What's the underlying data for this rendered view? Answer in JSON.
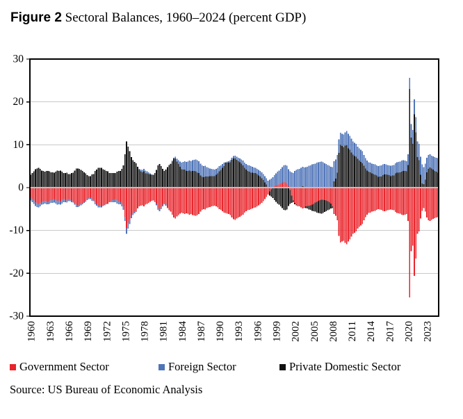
{
  "figure": {
    "label": "Figure 2",
    "title": "Sectoral Balances, 1960–2024 (percent GDP)",
    "source": "Source: US Bureau of Economic Analysis"
  },
  "legend": [
    {
      "label": "Government Sector",
      "color": "#e9242b"
    },
    {
      "label": "Foreign Sector",
      "color": "#4f74b8"
    },
    {
      "label": "Private Domestic Sector",
      "color": "#111111"
    }
  ],
  "chart_data": {
    "type": "bar",
    "stacked": true,
    "title": "Sectoral Balances, 1960–2024 (percent GDP)",
    "xlabel": "",
    "ylabel": "",
    "frequency": "quarterly",
    "x_start_year": 1960,
    "x_end_year": 2024,
    "x_tick_years": [
      1960,
      1963,
      1966,
      1969,
      1972,
      1975,
      1978,
      1981,
      1984,
      1987,
      1990,
      1993,
      1996,
      1999,
      2002,
      2005,
      2008,
      2011,
      2014,
      2017,
      2020,
      2023
    ],
    "ylim": [
      -30,
      30
    ],
    "y_ticks": [
      -30,
      -20,
      -10,
      0,
      10,
      20,
      30
    ],
    "grid": true,
    "legend_position": "bottom",
    "colors": {
      "grid": "#c9c9c9",
      "zero_line": "#bfbfbf",
      "frame": "#000000"
    },
    "series": [
      {
        "name": "Government Sector",
        "color": "#e9242b",
        "values": [
          -2.4,
          -2.7,
          -3.0,
          -3.4,
          -3.6,
          -3.8,
          -3.6,
          -3.3,
          -3.2,
          -3.1,
          -3.2,
          -3.3,
          -3.1,
          -2.9,
          -2.8,
          -2.7,
          -2.9,
          -3.1,
          -3.0,
          -3.2,
          -2.9,
          -2.7,
          -2.8,
          -3.0,
          -2.7,
          -2.8,
          -3.0,
          -3.2,
          -3.6,
          -4.0,
          -4.1,
          -4.0,
          -3.8,
          -3.6,
          -3.3,
          -3.0,
          -2.6,
          -2.4,
          -2.3,
          -2.6,
          -2.8,
          -3.4,
          -3.8,
          -4.2,
          -4.3,
          -4.4,
          -4.2,
          -4.0,
          -3.8,
          -3.7,
          -3.4,
          -3.2,
          -2.9,
          -2.8,
          -2.7,
          -2.9,
          -3.2,
          -3.4,
          -3.8,
          -4.4,
          -6.8,
          -9.5,
          -8.2,
          -7.4,
          -6.4,
          -5.9,
          -5.6,
          -5.4,
          -4.8,
          -4.4,
          -4.2,
          -4.1,
          -4.4,
          -4.0,
          -3.8,
          -3.6,
          -3.3,
          -3.1,
          -3.0,
          -3.2,
          -3.8,
          -4.8,
          -5.0,
          -4.6,
          -4.0,
          -3.6,
          -3.9,
          -4.6,
          -5.2,
          -5.6,
          -6.3,
          -7.0,
          -7.2,
          -6.7,
          -6.4,
          -6.1,
          -5.8,
          -6.0,
          -6.2,
          -6.0,
          -6.1,
          -6.3,
          -6.2,
          -6.4,
          -6.5,
          -6.6,
          -6.4,
          -6.2,
          -5.6,
          -5.2,
          -5.0,
          -5.1,
          -4.8,
          -4.6,
          -4.5,
          -4.4,
          -4.3,
          -4.2,
          -4.4,
          -4.6,
          -5.0,
          -5.2,
          -5.5,
          -5.8,
          -5.9,
          -6.1,
          -6.2,
          -6.4,
          -7.0,
          -7.4,
          -7.5,
          -7.2,
          -7.0,
          -6.8,
          -6.6,
          -6.3,
          -5.8,
          -5.5,
          -5.3,
          -5.2,
          -5.0,
          -4.9,
          -4.7,
          -4.6,
          -4.4,
          -4.1,
          -3.9,
          -3.6,
          -3.2,
          -2.7,
          -2.2,
          -1.6,
          -0.9,
          -0.4,
          0.0,
          0.3,
          0.4,
          0.6,
          0.7,
          0.9,
          1.1,
          1.3,
          1.2,
          0.9,
          0.3,
          -0.6,
          -1.9,
          -2.9,
          -3.6,
          -4.0,
          -4.2,
          -4.4,
          -4.6,
          -4.9,
          -4.6,
          -4.4,
          -4.3,
          -4.2,
          -4.1,
          -4.0,
          -3.8,
          -3.5,
          -3.3,
          -3.1,
          -2.9,
          -2.8,
          -2.8,
          -2.9,
          -3.0,
          -3.2,
          -3.4,
          -3.7,
          -4.4,
          -6.2,
          -6.6,
          -7.6,
          -11.3,
          -12.8,
          -12.6,
          -12.4,
          -12.9,
          -13.2,
          -12.6,
          -12.1,
          -11.4,
          -10.8,
          -10.5,
          -10.2,
          -9.6,
          -9.2,
          -8.8,
          -8.5,
          -7.6,
          -6.9,
          -6.3,
          -5.9,
          -5.8,
          -5.6,
          -5.5,
          -5.4,
          -5.2,
          -5.0,
          -5.1,
          -5.2,
          -5.4,
          -5.5,
          -5.4,
          -5.3,
          -5.2,
          -5.1,
          -5.2,
          -5.3,
          -5.7,
          -5.9,
          -6.0,
          -6.1,
          -6.3,
          -6.4,
          -6.3,
          -6.2,
          -7.8,
          -25.6,
          -14.8,
          -13.5,
          -20.6,
          -16.5,
          -10.8,
          -10.2,
          -7.2,
          -5.4,
          -4.8,
          -5.6,
          -7.0,
          -7.6,
          -7.8,
          -7.5,
          -7.3,
          -7.1,
          -7.0,
          -6.9
        ]
      },
      {
        "name": "Private Domestic Sector",
        "color": "#111111",
        "values": [
          3.0,
          3.4,
          3.8,
          4.3,
          4.5,
          4.6,
          4.4,
          4.0,
          3.9,
          3.7,
          3.9,
          3.9,
          3.8,
          3.6,
          3.6,
          3.5,
          3.7,
          4.0,
          3.9,
          4.0,
          3.7,
          3.4,
          3.4,
          3.5,
          3.2,
          3.2,
          3.4,
          3.5,
          4.0,
          4.5,
          4.5,
          4.4,
          4.1,
          3.9,
          3.6,
          3.3,
          2.9,
          2.7,
          2.7,
          3.1,
          3.2,
          3.9,
          4.2,
          4.6,
          4.6,
          4.6,
          4.3,
          4.1,
          3.9,
          3.8,
          3.4,
          3.4,
          3.4,
          3.4,
          3.4,
          3.7,
          3.9,
          3.9,
          4.4,
          5.2,
          7.8,
          10.8,
          9.6,
          8.5,
          7.1,
          6.4,
          6.0,
          5.7,
          4.9,
          4.2,
          3.8,
          3.6,
          3.8,
          3.3,
          3.3,
          3.2,
          3.1,
          3.0,
          3.0,
          3.4,
          4.1,
          5.2,
          5.5,
          5.0,
          4.4,
          3.9,
          4.2,
          4.8,
          5.3,
          5.5,
          6.1,
          6.7,
          6.8,
          6.1,
          5.5,
          4.9,
          4.3,
          4.2,
          4.2,
          3.9,
          3.9,
          4.0,
          3.8,
          3.9,
          3.9,
          3.8,
          3.5,
          3.4,
          2.8,
          2.5,
          2.4,
          2.6,
          2.6,
          2.6,
          2.7,
          2.7,
          2.7,
          2.7,
          3.0,
          3.3,
          3.8,
          4.1,
          4.6,
          5.0,
          5.8,
          5.8,
          5.8,
          5.9,
          6.5,
          6.8,
          6.8,
          6.5,
          6.2,
          5.9,
          5.6,
          5.2,
          4.6,
          4.2,
          3.9,
          3.7,
          3.5,
          3.5,
          3.4,
          3.4,
          3.2,
          2.8,
          2.6,
          2.2,
          1.8,
          1.2,
          0.7,
          0.0,
          -1.0,
          -1.7,
          -2.4,
          -2.9,
          -3.3,
          -3.7,
          -4.0,
          -4.4,
          -4.8,
          -5.2,
          -5.3,
          -5.1,
          -4.3,
          -3.2,
          -1.7,
          -0.5,
          -0.3,
          -0.1,
          -0.1,
          0.0,
          0.1,
          0.3,
          -0.1,
          -0.4,
          -0.6,
          -0.9,
          -1.1,
          -1.4,
          -1.7,
          -2.1,
          -2.5,
          -2.8,
          -3.1,
          -3.3,
          -3.1,
          -2.8,
          -2.5,
          -2.1,
          -1.7,
          -1.2,
          -0.4,
          1.5,
          2.1,
          3.5,
          8.1,
          10.0,
          9.7,
          9.4,
          9.8,
          9.9,
          9.2,
          8.8,
          8.2,
          7.7,
          7.4,
          7.2,
          6.7,
          6.3,
          6.0,
          5.7,
          5.1,
          4.5,
          4.0,
          3.7,
          3.6,
          3.3,
          3.2,
          3.0,
          2.8,
          2.5,
          2.6,
          2.6,
          2.9,
          3.1,
          3.1,
          3.0,
          2.9,
          2.7,
          2.8,
          2.8,
          3.3,
          3.5,
          3.5,
          3.6,
          3.7,
          3.9,
          3.9,
          3.8,
          5.3,
          23.0,
          11.7,
          10.2,
          17.1,
          12.9,
          7.1,
          6.4,
          3.0,
          1.0,
          0.8,
          1.9,
          3.6,
          4.4,
          4.7,
          4.5,
          4.2,
          3.9,
          3.7,
          3.5
        ]
      },
      {
        "name": "Foreign Sector",
        "color": "#4f74b8",
        "values": [
          -0.6,
          -0.7,
          -0.8,
          -0.9,
          -0.9,
          -0.8,
          -0.8,
          -0.7,
          -0.7,
          -0.6,
          -0.7,
          -0.6,
          -0.7,
          -0.7,
          -0.8,
          -0.8,
          -0.8,
          -0.9,
          -0.9,
          -0.8,
          -0.8,
          -0.7,
          -0.6,
          -0.5,
          -0.5,
          -0.4,
          -0.4,
          -0.3,
          -0.4,
          -0.5,
          -0.4,
          -0.4,
          -0.3,
          -0.3,
          -0.3,
          -0.3,
          -0.3,
          -0.3,
          -0.4,
          -0.5,
          -0.4,
          -0.5,
          -0.4,
          -0.4,
          -0.3,
          -0.2,
          -0.1,
          -0.1,
          -0.1,
          -0.1,
          0.0,
          -0.2,
          -0.5,
          -0.6,
          -0.7,
          -0.8,
          -0.7,
          -0.5,
          -0.6,
          -0.8,
          -1.0,
          -1.3,
          -1.4,
          -1.1,
          -0.7,
          -0.5,
          -0.4,
          -0.3,
          -0.1,
          0.2,
          0.4,
          0.5,
          0.6,
          0.7,
          0.5,
          0.4,
          0.2,
          0.1,
          0.0,
          -0.2,
          -0.3,
          -0.4,
          -0.5,
          -0.4,
          -0.4,
          -0.3,
          -0.3,
          -0.2,
          -0.1,
          0.1,
          0.2,
          0.3,
          0.4,
          0.6,
          0.9,
          1.2,
          1.5,
          1.8,
          2.0,
          2.1,
          2.2,
          2.3,
          2.4,
          2.5,
          2.6,
          2.8,
          2.9,
          2.8,
          2.8,
          2.7,
          2.6,
          2.5,
          2.2,
          2.0,
          1.8,
          1.7,
          1.6,
          1.5,
          1.4,
          1.3,
          1.2,
          1.1,
          0.9,
          0.8,
          0.1,
          0.3,
          0.4,
          0.5,
          0.5,
          0.6,
          0.7,
          0.7,
          0.8,
          0.9,
          1.0,
          1.1,
          1.2,
          1.3,
          1.4,
          1.5,
          1.5,
          1.4,
          1.3,
          1.2,
          1.2,
          1.3,
          1.3,
          1.4,
          1.4,
          1.5,
          1.5,
          1.6,
          1.9,
          2.1,
          2.4,
          2.6,
          2.9,
          3.1,
          3.3,
          3.5,
          3.7,
          3.9,
          4.1,
          4.2,
          4.0,
          3.8,
          3.6,
          3.4,
          3.9,
          4.1,
          4.3,
          4.4,
          4.5,
          4.6,
          4.7,
          4.8,
          4.9,
          5.1,
          5.2,
          5.4,
          5.5,
          5.6,
          5.8,
          5.9,
          6.0,
          6.1,
          5.9,
          5.7,
          5.5,
          5.3,
          5.1,
          4.9,
          4.8,
          4.7,
          4.5,
          4.1,
          3.2,
          2.8,
          2.9,
          3.0,
          3.1,
          3.3,
          3.4,
          3.3,
          3.2,
          3.1,
          3.1,
          3.0,
          2.9,
          2.9,
          2.8,
          2.8,
          2.5,
          2.4,
          2.3,
          2.2,
          2.2,
          2.3,
          2.3,
          2.4,
          2.4,
          2.5,
          2.5,
          2.6,
          2.5,
          2.4,
          2.3,
          2.3,
          2.3,
          2.4,
          2.4,
          2.5,
          2.4,
          2.4,
          2.5,
          2.5,
          2.6,
          2.5,
          2.4,
          2.4,
          2.5,
          2.6,
          3.1,
          3.3,
          3.5,
          3.6,
          3.7,
          3.8,
          4.2,
          4.4,
          4.0,
          3.7,
          3.4,
          3.2,
          3.1,
          3.0,
          3.1,
          3.2,
          3.3,
          3.4
        ]
      }
    ]
  }
}
